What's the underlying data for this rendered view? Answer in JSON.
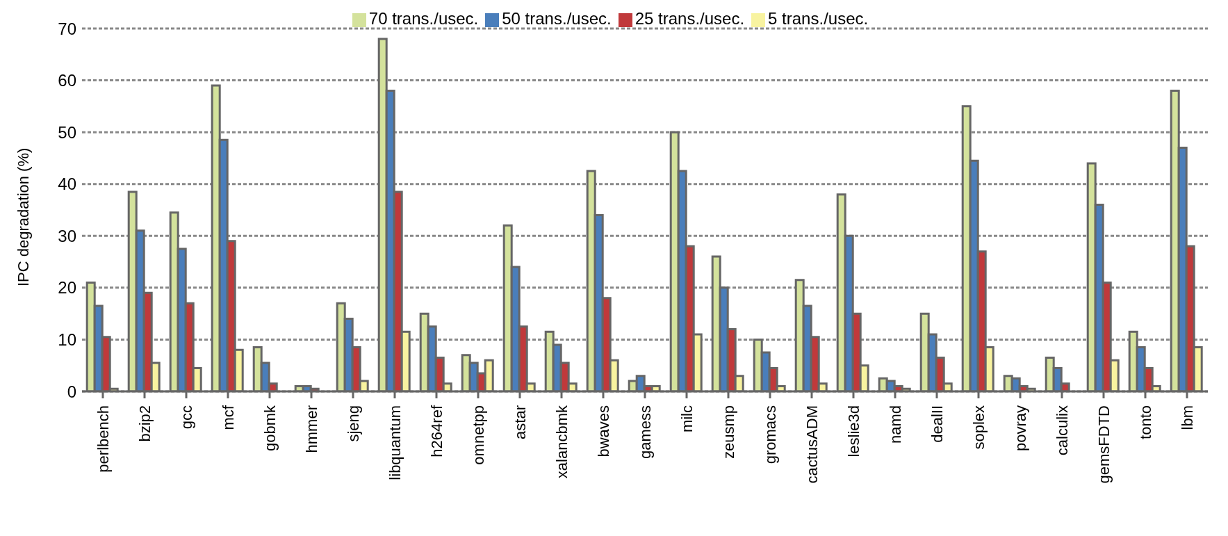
{
  "chart_data": {
    "type": "bar",
    "ylabel": "IPC degradation (%)",
    "categories": [
      "perlbench",
      "bzip2",
      "gcc",
      "mcf",
      "gobmk",
      "hmmer",
      "sjeng",
      "libquantum",
      "h264ref",
      "omnetpp",
      "astar",
      "xalancbmk",
      "bwaves",
      "gamess",
      "milc",
      "zeusmp",
      "gromacs",
      "cactusADM",
      "leslie3d",
      "namd",
      "dealII",
      "soplex",
      "povray",
      "calculix",
      "gemsFDTD",
      "tonto",
      "lbm"
    ],
    "series": [
      {
        "name": "70 trans./usec.",
        "color": "#d4e29c",
        "values": [
          21,
          38.5,
          34.5,
          59,
          8.5,
          1,
          17,
          68,
          15,
          7,
          32,
          11.5,
          42.5,
          2,
          50,
          26,
          10,
          21.5,
          38,
          2.5,
          15,
          55,
          3,
          6.5,
          44,
          11.5,
          58
        ]
      },
      {
        "name": "50 trans./usec.",
        "color": "#4a7ebb",
        "values": [
          16.5,
          31,
          27.5,
          48.5,
          5.5,
          1,
          14,
          58,
          12.5,
          5.5,
          24,
          9,
          34,
          3,
          42.5,
          20,
          7.5,
          16.5,
          30,
          2,
          11,
          44.5,
          2.5,
          4.5,
          36,
          8.5,
          47
        ]
      },
      {
        "name": "25 trans./usec.",
        "color": "#c0393b",
        "values": [
          10.5,
          19,
          17,
          29,
          1.5,
          0.5,
          8.5,
          38.5,
          6.5,
          3.5,
          12.5,
          5.5,
          18,
          1,
          28,
          12,
          4.5,
          10.5,
          15,
          1,
          6.5,
          27,
          1,
          1.5,
          21,
          4.5,
          28
        ]
      },
      {
        "name": "5 trans./usec.",
        "color": "#f8f3a0",
        "values": [
          0.5,
          5.5,
          4.5,
          8,
          0,
          0,
          2,
          11.5,
          1.5,
          6,
          1.5,
          1.5,
          6,
          1,
          11,
          3,
          1,
          1.5,
          5,
          0.5,
          1.5,
          8.5,
          0.5,
          0,
          6,
          1,
          8.5
        ]
      }
    ],
    "ylim": [
      0,
      70
    ],
    "yticks": [
      0,
      10,
      20,
      30,
      40,
      50,
      60,
      70
    ],
    "grid": "y",
    "legend": "top"
  }
}
